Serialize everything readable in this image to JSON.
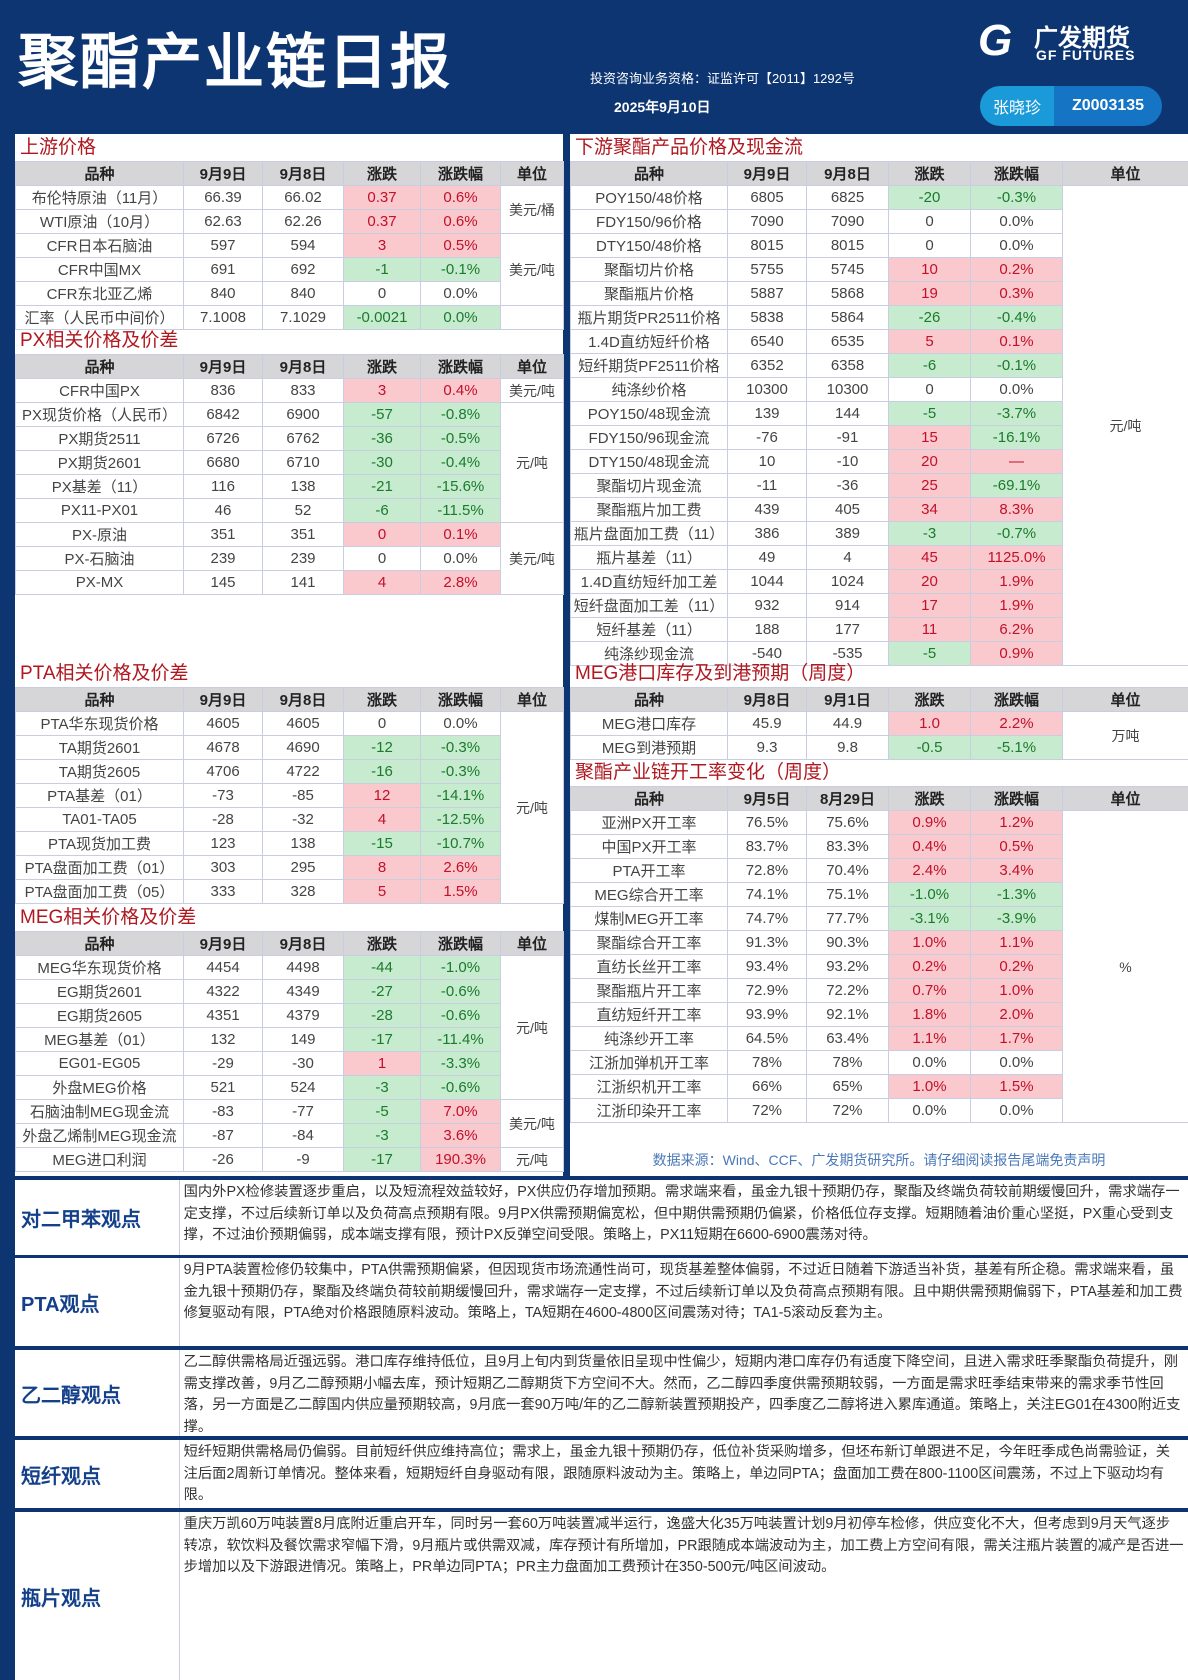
{
  "header": {
    "title": "聚酯产业链日报",
    "qualification": "投资咨询业务资格：证监许可【2011】1292号",
    "date": "2025年9月10日",
    "logo_cn": "广发期货",
    "logo_en": "GF FUTURES",
    "analyst_name": "张晓珍",
    "analyst_id": "Z0003135"
  },
  "colors": {
    "navy": "#0d3572",
    "up_bg": "#f9c9cd",
    "up_text": "#c2102a",
    "down_bg": "#c7ebcf",
    "down_text": "#1b7a2c",
    "section_title": "#b01820"
  },
  "tables": {
    "upstream": {
      "title": "上游价格",
      "headers": [
        "品种",
        "9月9日",
        "9月8日",
        "涨跌",
        "涨跌幅",
        "单位"
      ],
      "rows": [
        [
          "布伦特原油（11月）",
          "66.39",
          "66.02",
          "0.37",
          "0.6%",
          "rr"
        ],
        [
          "WTI原油（10月）",
          "62.63",
          "62.26",
          "0.37",
          "0.6%",
          "rr"
        ],
        [
          "CFR日本石脑油",
          "597",
          "594",
          "3",
          "0.5%",
          "rr"
        ],
        [
          "CFR中国MX",
          "691",
          "692",
          "-1",
          "-0.1%",
          "gg"
        ],
        [
          "CFR东北亚乙烯",
          "840",
          "840",
          "0",
          "0.0%",
          ""
        ],
        [
          "汇率（人民币中间价）",
          "7.1008",
          "7.1029",
          "-0.0021",
          "0.0%",
          "gg"
        ]
      ],
      "units": [
        {
          "label": "美元/桶",
          "span": 2
        },
        {
          "label": "美元/吨",
          "span": 3
        },
        {
          "label": "",
          "span": 1
        }
      ]
    },
    "px": {
      "title": "PX相关价格及价差",
      "headers": [
        "品种",
        "9月9日",
        "9月8日",
        "涨跌",
        "涨跌幅",
        "单位"
      ],
      "rows": [
        [
          "CFR中国PX",
          "836",
          "833",
          "3",
          "0.4%",
          "rr"
        ],
        [
          "PX现货价格（人民币）",
          "6842",
          "6900",
          "-57",
          "-0.8%",
          "gg"
        ],
        [
          "PX期货2511",
          "6726",
          "6762",
          "-36",
          "-0.5%",
          "gg"
        ],
        [
          "PX期货2601",
          "6680",
          "6710",
          "-30",
          "-0.4%",
          "gg"
        ],
        [
          "PX基差（11）",
          "116",
          "138",
          "-21",
          "-15.6%",
          "gg"
        ],
        [
          "PX11-PX01",
          "46",
          "52",
          "-6",
          "-11.5%",
          "gg"
        ],
        [
          "PX-原油",
          "351",
          "351",
          "0",
          "0.1%",
          "rr"
        ],
        [
          "PX-石脑油",
          "239",
          "239",
          "0",
          "0.0%",
          ""
        ],
        [
          "PX-MX",
          "145",
          "141",
          "4",
          "2.8%",
          "rr"
        ]
      ],
      "units": [
        {
          "label": "美元/吨",
          "span": 1
        },
        {
          "label": "元/吨",
          "span": 5
        },
        {
          "label": "美元/吨",
          "span": 3
        }
      ]
    },
    "pta": {
      "title": "PTA相关价格及价差",
      "headers": [
        "品种",
        "9月9日",
        "9月8日",
        "涨跌",
        "涨跌幅",
        "单位"
      ],
      "rows": [
        [
          "PTA华东现货价格",
          "4605",
          "4605",
          "0",
          "0.0%",
          ""
        ],
        [
          "TA期货2601",
          "4678",
          "4690",
          "-12",
          "-0.3%",
          "gg"
        ],
        [
          "TA期货2605",
          "4706",
          "4722",
          "-16",
          "-0.3%",
          "gg"
        ],
        [
          "PTA基差（01）",
          "-73",
          "-85",
          "12",
          "-14.1%",
          "rg"
        ],
        [
          "TA01-TA05",
          "-28",
          "-32",
          "4",
          "-12.5%",
          "rg"
        ],
        [
          "PTA现货加工费",
          "123",
          "138",
          "-15",
          "-10.7%",
          "gg"
        ],
        [
          "PTA盘面加工费（01）",
          "303",
          "295",
          "8",
          "2.6%",
          "rr"
        ],
        [
          "PTA盘面加工费（05）",
          "333",
          "328",
          "5",
          "1.5%",
          "rr"
        ]
      ],
      "units": [
        {
          "label": "元/吨",
          "span": 8
        }
      ]
    },
    "meg": {
      "title": "MEG相关价格及价差",
      "headers": [
        "品种",
        "9月9日",
        "9月8日",
        "涨跌",
        "涨跌幅",
        "单位"
      ],
      "rows": [
        [
          "MEG华东现货价格",
          "4454",
          "4498",
          "-44",
          "-1.0%",
          "gg"
        ],
        [
          "EG期货2601",
          "4322",
          "4349",
          "-27",
          "-0.6%",
          "gg"
        ],
        [
          "EG期货2605",
          "4351",
          "4379",
          "-28",
          "-0.6%",
          "gg"
        ],
        [
          "MEG基差（01）",
          "132",
          "149",
          "-17",
          "-11.4%",
          "gg"
        ],
        [
          "EG01-EG05",
          "-29",
          "-30",
          "1",
          "-3.3%",
          "rg"
        ],
        [
          "外盘MEG价格",
          "521",
          "524",
          "-3",
          "-0.6%",
          "gg"
        ],
        [
          "石脑油制MEG现金流",
          "-83",
          "-77",
          "-5",
          "7.0%",
          "gr"
        ],
        [
          "外盘乙烯制MEG现金流",
          "-87",
          "-84",
          "-3",
          "3.6%",
          "gr"
        ],
        [
          "MEG进口利润",
          "-26",
          "-9",
          "-17",
          "190.3%",
          "gr"
        ]
      ],
      "units": [
        {
          "label": "元/吨",
          "span": 6
        },
        {
          "label": "美元/吨",
          "span": 2
        },
        {
          "label": "元/吨",
          "span": 1
        }
      ]
    },
    "downstream": {
      "title": "下游聚酯产品价格及现金流",
      "headers": [
        "品种",
        "9月9日",
        "9月8日",
        "涨跌",
        "涨跌幅",
        "单位"
      ],
      "rows": [
        [
          "POY150/48价格",
          "6805",
          "6825",
          "-20",
          "-0.3%",
          "gg"
        ],
        [
          "FDY150/96价格",
          "7090",
          "7090",
          "0",
          "0.0%",
          ""
        ],
        [
          "DTY150/48价格",
          "8015",
          "8015",
          "0",
          "0.0%",
          ""
        ],
        [
          "聚酯切片价格",
          "5755",
          "5745",
          "10",
          "0.2%",
          "rr"
        ],
        [
          "聚酯瓶片价格",
          "5887",
          "5868",
          "19",
          "0.3%",
          "rr"
        ],
        [
          "瓶片期货PR2511价格",
          "5838",
          "5864",
          "-26",
          "-0.4%",
          "gg"
        ],
        [
          "1.4D直纺短纤价格",
          "6540",
          "6535",
          "5",
          "0.1%",
          "rr"
        ],
        [
          "短纤期货PF2511价格",
          "6352",
          "6358",
          "-6",
          "-0.1%",
          "gg"
        ],
        [
          "纯涤纱价格",
          "10300",
          "10300",
          "0",
          "0.0%",
          ""
        ],
        [
          "POY150/48现金流",
          "139",
          "144",
          "-5",
          "-3.7%",
          "gg"
        ],
        [
          "FDY150/96现金流",
          "-76",
          "-91",
          "15",
          "-16.1%",
          "rg"
        ],
        [
          "DTY150/48现金流",
          "10",
          "-10",
          "20",
          "—",
          "rr"
        ],
        [
          "聚酯切片现金流",
          "-11",
          "-36",
          "25",
          "-69.1%",
          "rg"
        ],
        [
          "聚酯瓶片加工费",
          "439",
          "405",
          "34",
          "8.3%",
          "rr"
        ],
        [
          "瓶片盘面加工费（11）",
          "386",
          "389",
          "-3",
          "-0.7%",
          "gg"
        ],
        [
          "瓶片基差（11）",
          "49",
          "4",
          "45",
          "1125.0%",
          "rr"
        ],
        [
          "1.4D直纺短纤加工差",
          "1044",
          "1024",
          "20",
          "1.9%",
          "rr"
        ],
        [
          "短纤盘面加工差（11）",
          "932",
          "914",
          "17",
          "1.9%",
          "rr"
        ],
        [
          "短纤基差（11）",
          "188",
          "177",
          "11",
          "6.2%",
          "rr"
        ],
        [
          "纯涤纱现金流",
          "-540",
          "-535",
          "-5",
          "0.9%",
          "gr"
        ]
      ],
      "units": [
        {
          "label": "元/吨",
          "span": 20
        }
      ]
    },
    "meg_port": {
      "title": "MEG港口库存及到港预期（周度）",
      "headers": [
        "品种",
        "9月8日",
        "9月1日",
        "涨跌",
        "涨跌幅",
        "单位"
      ],
      "rows": [
        [
          "MEG港口库存",
          "45.9",
          "44.9",
          "1.0",
          "2.2%",
          "rr"
        ],
        [
          "MEG到港预期",
          "9.3",
          "9.8",
          "-0.5",
          "-5.1%",
          "gg"
        ]
      ],
      "units": [
        {
          "label": "万吨",
          "span": 2
        }
      ]
    },
    "rates": {
      "title": "聚酯产业链开工率变化（周度）",
      "headers": [
        "品种",
        "9月5日",
        "8月29日",
        "涨跌",
        "涨跌幅",
        "单位"
      ],
      "rows": [
        [
          "亚洲PX开工率",
          "76.5%",
          "75.6%",
          "0.9%",
          "1.2%",
          "rr"
        ],
        [
          "中国PX开工率",
          "83.7%",
          "83.3%",
          "0.4%",
          "0.5%",
          "rr"
        ],
        [
          "PTA开工率",
          "72.8%",
          "70.4%",
          "2.4%",
          "3.4%",
          "rr"
        ],
        [
          "MEG综合开工率",
          "74.1%",
          "75.1%",
          "-1.0%",
          "-1.3%",
          "gg"
        ],
        [
          "煤制MEG开工率",
          "74.7%",
          "77.7%",
          "-3.1%",
          "-3.9%",
          "gg"
        ],
        [
          "聚酯综合开工率",
          "91.3%",
          "90.3%",
          "1.0%",
          "1.1%",
          "rr"
        ],
        [
          "直纺长丝开工率",
          "93.4%",
          "93.2%",
          "0.2%",
          "0.2%",
          "rr"
        ],
        [
          "聚酯瓶片开工率",
          "72.9%",
          "72.2%",
          "0.7%",
          "1.0%",
          "rr"
        ],
        [
          "直纺短纤开工率",
          "93.9%",
          "92.1%",
          "1.8%",
          "2.0%",
          "rr"
        ],
        [
          "纯涤纱开工率",
          "64.5%",
          "63.4%",
          "1.1%",
          "1.7%",
          "rr"
        ],
        [
          "江浙加弹机开工率",
          "78%",
          "78%",
          "0.0%",
          "0.0%",
          ""
        ],
        [
          "江浙织机开工率",
          "66%",
          "65%",
          "1.0%",
          "1.5%",
          "rr"
        ],
        [
          "江浙印染开工率",
          "72%",
          "72%",
          "0.0%",
          "0.0%",
          ""
        ]
      ],
      "units": [
        {
          "label": "%",
          "span": 13
        }
      ]
    }
  },
  "source": "数据来源：Wind、CCF、广发期货研究所。请仔细阅读报告尾端免责声明",
  "commentary": [
    {
      "label": "对二甲苯观点",
      "text": "国内外PX检修装置逐步重启，以及短流程效益较好，PX供应仍存增加预期。需求端来看，虽金九银十预期仍存，聚酯及终端负荷较前期缓慢回升，需求端存一定支撑，不过后续新订单以及负荷高点预期有限。9月PX供需预期偏宽松，但中期供需预期仍偏紧，价格低位存支撑。短期随着油价重心坚挺，PX重心受到支撑，不过油价预期偏弱，成本端支撑有限，预计PX反弹空间受限。策略上，PX11短期在6600-6900震荡对待。"
    },
    {
      "label": "PTA观点",
      "text": "9月PTA装置检修仍较集中，PTA供需预期偏紧，但因现货市场流通性尚可，现货基差整体偏弱，不过近日随着下游适当补货，基差有所企稳。需求端来看，虽金九银十预期仍存，聚酯及终端负荷较前期缓慢回升，需求端存一定支撑，不过后续新订单以及负荷高点预期有限。且中期供需预期偏弱下，PTA基差和加工费修复驱动有限，PTA绝对价格跟随原料波动。策略上，TA短期在4600-4800区间震荡对待；TA1-5滚动反套为主。"
    },
    {
      "label": "乙二醇观点",
      "text": "乙二醇供需格局近强远弱。港口库存维持低位，且9月上旬内到货量依旧呈现中性偏少，短期内港口库存仍有适度下降空间，且进入需求旺季聚酯负荷提升，刚需支撑改善，9月乙二醇预期小幅去库，预计短期乙二醇期货下方空间不大。然而，乙二醇四季度供需预期较弱，一方面是需求旺季结束带来的需求季节性回落，另一方面是乙二醇国内供应量预期较高，9月底一套90万吨/年的乙二醇新装置预期投产，四季度乙二醇将进入累库通道。策略上，关注EG01在4300附近支撑。"
    },
    {
      "label": "短纤观点",
      "text": "短纤短期供需格局仍偏弱。目前短纤供应维持高位；需求上，虽金九银十预期仍存，低位补货采购增多，但坯布新订单跟进不足，今年旺季成色尚需验证，关注后面2周新订单情况。整体来看，短期短纤自身驱动有限，跟随原料波动为主。策略上，单边同PTA；盘面加工费在800-1100区间震荡，不过上下驱动均有限。"
    },
    {
      "label": "瓶片观点",
      "text": "重庆万凯60万吨装置8月底附近重启开车，同时另一套60万吨装置减半运行，逸盛大化35万吨装置计划9月初停车检修，供应变化不大，但考虑到9月天气逐步转凉，软饮料及餐饮需求窄幅下滑，9月瓶片或供需双减，库存预计有所增加，PR跟随成本端波动为主，加工费上方空间有限，需关注瓶片装置的减产是否进一步增加以及下游跟进情况。策略上，PR单边同PTA；PR主力盘面加工费预计在350-500元/吨区间波动。"
    }
  ]
}
